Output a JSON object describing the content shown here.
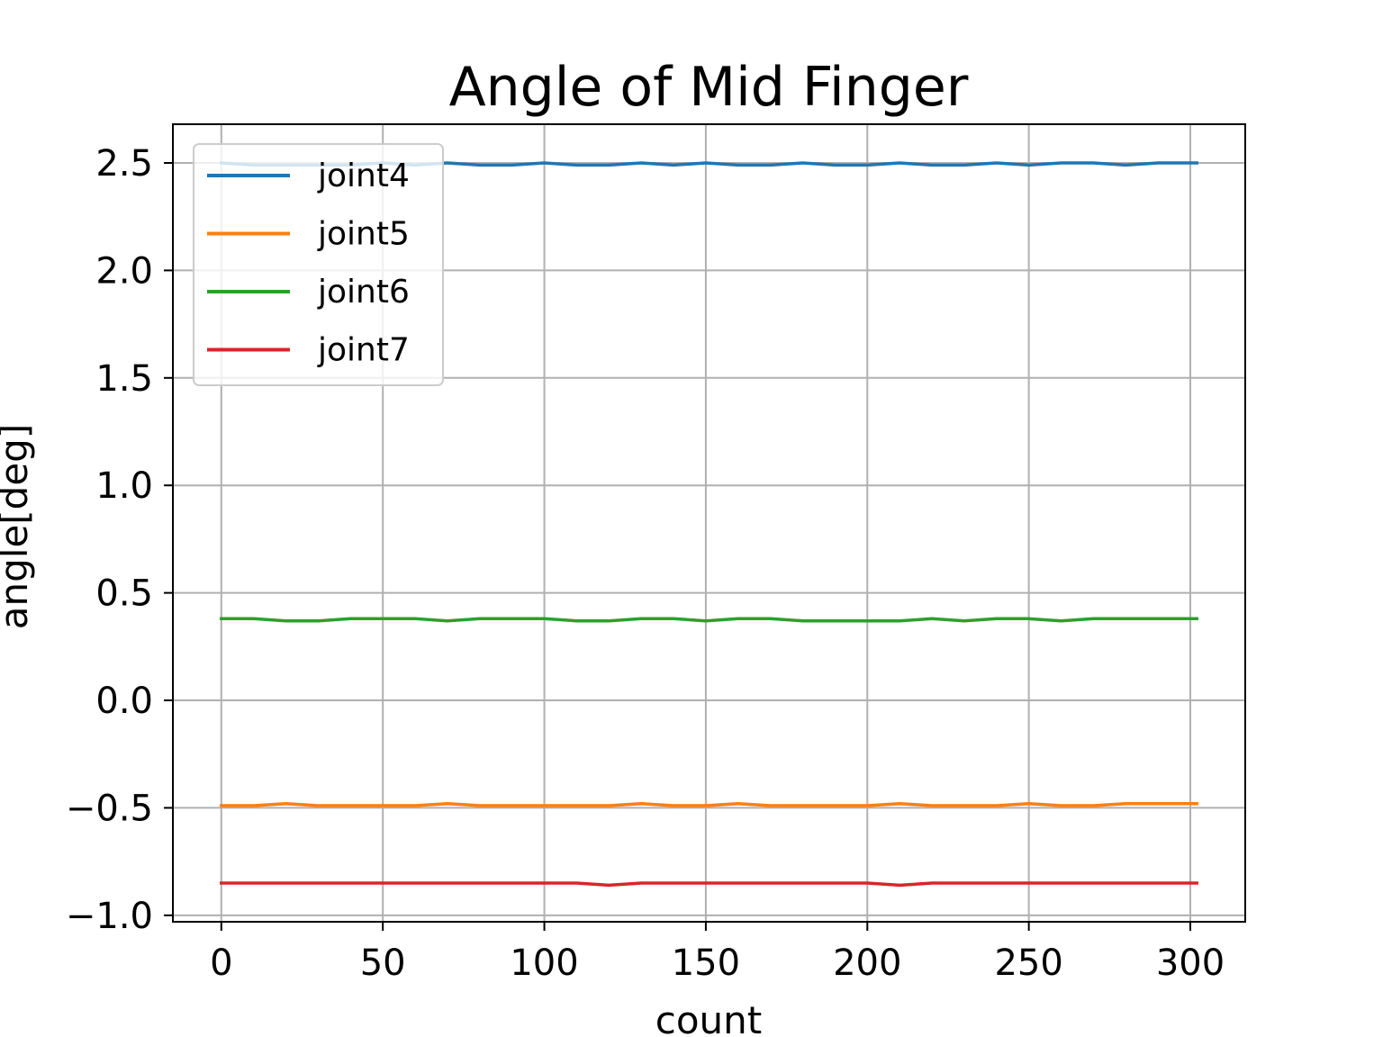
{
  "chart_data": {
    "type": "line",
    "title": "Angle of Mid Finger",
    "xlabel": "count",
    "ylabel": "angle[deg]",
    "xlim": [
      -15,
      317
    ],
    "ylim": [
      -1.03,
      2.68
    ],
    "xticks": [
      0,
      50,
      100,
      150,
      200,
      250,
      300
    ],
    "yticks": [
      -1.0,
      -0.5,
      0.0,
      0.5,
      1.0,
      1.5,
      2.0,
      2.5
    ],
    "xtick_labels": [
      "0",
      "50",
      "100",
      "150",
      "200",
      "250",
      "300"
    ],
    "ytick_labels": [
      "−1.0",
      "−0.5",
      "0.0",
      "0.5",
      "1.0",
      "1.5",
      "2.0",
      "2.5"
    ],
    "grid": true,
    "legend": "upper-left",
    "x": [
      0,
      10,
      20,
      30,
      40,
      50,
      60,
      70,
      80,
      90,
      100,
      110,
      120,
      130,
      140,
      150,
      160,
      170,
      180,
      190,
      200,
      210,
      220,
      230,
      240,
      250,
      260,
      270,
      280,
      290,
      302
    ],
    "series": [
      {
        "name": "joint4",
        "color": "#1f77b4",
        "values": [
          2.5,
          2.49,
          2.49,
          2.49,
          2.49,
          2.5,
          2.49,
          2.5,
          2.49,
          2.49,
          2.5,
          2.49,
          2.49,
          2.5,
          2.49,
          2.5,
          2.49,
          2.49,
          2.5,
          2.49,
          2.49,
          2.5,
          2.49,
          2.49,
          2.5,
          2.49,
          2.5,
          2.5,
          2.49,
          2.5,
          2.5
        ]
      },
      {
        "name": "joint5",
        "color": "#ff7f0e",
        "values": [
          -0.49,
          -0.49,
          -0.48,
          -0.49,
          -0.49,
          -0.49,
          -0.49,
          -0.48,
          -0.49,
          -0.49,
          -0.49,
          -0.49,
          -0.49,
          -0.48,
          -0.49,
          -0.49,
          -0.48,
          -0.49,
          -0.49,
          -0.49,
          -0.49,
          -0.48,
          -0.49,
          -0.49,
          -0.49,
          -0.48,
          -0.49,
          -0.49,
          -0.48,
          -0.48,
          -0.48
        ]
      },
      {
        "name": "joint6",
        "color": "#2ca02c",
        "values": [
          0.38,
          0.38,
          0.37,
          0.37,
          0.38,
          0.38,
          0.38,
          0.37,
          0.38,
          0.38,
          0.38,
          0.37,
          0.37,
          0.38,
          0.38,
          0.37,
          0.38,
          0.38,
          0.37,
          0.37,
          0.37,
          0.37,
          0.38,
          0.37,
          0.38,
          0.38,
          0.37,
          0.38,
          0.38,
          0.38,
          0.38
        ]
      },
      {
        "name": "joint7",
        "color": "#d62728",
        "values": [
          -0.85,
          -0.85,
          -0.85,
          -0.85,
          -0.85,
          -0.85,
          -0.85,
          -0.85,
          -0.85,
          -0.85,
          -0.85,
          -0.85,
          -0.86,
          -0.85,
          -0.85,
          -0.85,
          -0.85,
          -0.85,
          -0.85,
          -0.85,
          -0.85,
          -0.86,
          -0.85,
          -0.85,
          -0.85,
          -0.85,
          -0.85,
          -0.85,
          -0.85,
          -0.85,
          -0.85
        ]
      }
    ]
  }
}
